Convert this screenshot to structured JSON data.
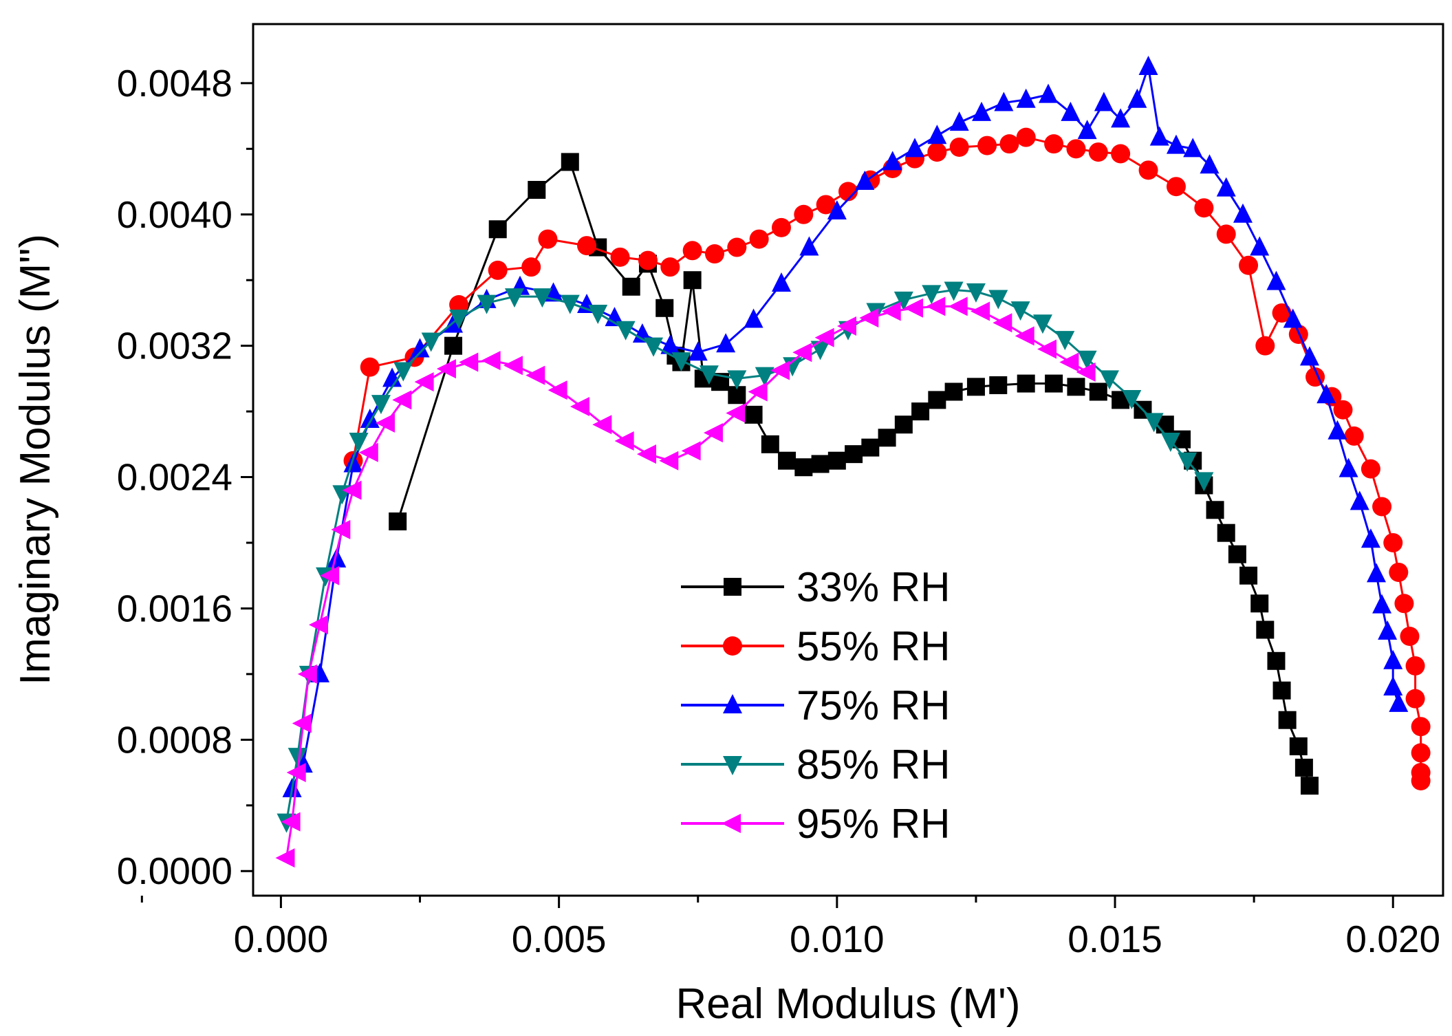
{
  "chart_data": {
    "type": "scatter",
    "title": "",
    "xlabel": "Real Modulus (M')",
    "ylabel": "Imaginary Modulus (M\")",
    "xlim": [
      -0.0005,
      0.0209
    ],
    "ylim": [
      -0.00015,
      0.00516
    ],
    "x_ticks": [
      0.0,
      0.005,
      0.01,
      0.015,
      0.02
    ],
    "x_tick_labels": [
      "0.000",
      "0.005",
      "0.010",
      "0.015",
      "0.020"
    ],
    "y_ticks": [
      0.0,
      0.0008,
      0.0016,
      0.0024,
      0.0032,
      0.004,
      0.0048
    ],
    "y_tick_labels": [
      "0.0000",
      "0.0008",
      "0.0016",
      "0.0024",
      "0.0032",
      "0.0040",
      "0.0048"
    ],
    "grid": false,
    "legend_position": "bottom-center",
    "series": [
      {
        "name": "33% RH",
        "color": "#000000",
        "marker": "square",
        "points": [
          [
            0.0021,
            0.00213
          ],
          [
            0.0031,
            0.0032
          ],
          [
            0.0039,
            0.00391
          ],
          [
            0.0046,
            0.00415
          ],
          [
            0.0052,
            0.00432
          ],
          [
            0.0057,
            0.0038
          ],
          [
            0.0063,
            0.00356
          ],
          [
            0.0066,
            0.0037
          ],
          [
            0.0069,
            0.00343
          ],
          [
            0.0071,
            0.00314
          ],
          [
            0.0072,
            0.0031
          ],
          [
            0.0074,
            0.0036
          ],
          [
            0.0076,
            0.003
          ],
          [
            0.0079,
            0.00298
          ],
          [
            0.0082,
            0.0029
          ],
          [
            0.0085,
            0.00278
          ],
          [
            0.0088,
            0.0026
          ],
          [
            0.0091,
            0.0025
          ],
          [
            0.0094,
            0.00246
          ],
          [
            0.0097,
            0.00248
          ],
          [
            0.01,
            0.0025
          ],
          [
            0.0103,
            0.00254
          ],
          [
            0.0106,
            0.00258
          ],
          [
            0.0109,
            0.00264
          ],
          [
            0.0112,
            0.00272
          ],
          [
            0.0115,
            0.0028
          ],
          [
            0.0118,
            0.00287
          ],
          [
            0.0121,
            0.00292
          ],
          [
            0.0125,
            0.00295
          ],
          [
            0.0129,
            0.00296
          ],
          [
            0.0134,
            0.00297
          ],
          [
            0.0139,
            0.00297
          ],
          [
            0.0143,
            0.00295
          ],
          [
            0.0147,
            0.00292
          ],
          [
            0.0151,
            0.00287
          ],
          [
            0.0155,
            0.00281
          ],
          [
            0.0159,
            0.00272
          ],
          [
            0.0162,
            0.00263
          ],
          [
            0.0164,
            0.0025
          ],
          [
            0.0166,
            0.00235
          ],
          [
            0.0168,
            0.0022
          ],
          [
            0.017,
            0.00206
          ],
          [
            0.0172,
            0.00193
          ],
          [
            0.0174,
            0.0018
          ],
          [
            0.0176,
            0.00163
          ],
          [
            0.0177,
            0.00147
          ],
          [
            0.0179,
            0.00128
          ],
          [
            0.018,
            0.0011
          ],
          [
            0.0181,
            0.00092
          ],
          [
            0.0183,
            0.00076
          ],
          [
            0.0184,
            0.00063
          ],
          [
            0.0185,
            0.00052
          ]
        ]
      },
      {
        "name": "55% RH",
        "color": "#ff0000",
        "marker": "circle",
        "points": [
          [
            0.0013,
            0.0025
          ],
          [
            0.0016,
            0.00307
          ],
          [
            0.0024,
            0.00313
          ],
          [
            0.0032,
            0.00345
          ],
          [
            0.0039,
            0.00366
          ],
          [
            0.0045,
            0.00368
          ],
          [
            0.0048,
            0.00385
          ],
          [
            0.0055,
            0.00381
          ],
          [
            0.0061,
            0.00374
          ],
          [
            0.0066,
            0.00372
          ],
          [
            0.007,
            0.00368
          ],
          [
            0.0074,
            0.00378
          ],
          [
            0.0078,
            0.00376
          ],
          [
            0.0082,
            0.0038
          ],
          [
            0.0086,
            0.00385
          ],
          [
            0.009,
            0.00392
          ],
          [
            0.0094,
            0.004
          ],
          [
            0.0098,
            0.00406
          ],
          [
            0.0102,
            0.00414
          ],
          [
            0.0106,
            0.00421
          ],
          [
            0.011,
            0.00428
          ],
          [
            0.0114,
            0.00434
          ],
          [
            0.0118,
            0.00438
          ],
          [
            0.0122,
            0.00441
          ],
          [
            0.0127,
            0.00442
          ],
          [
            0.0131,
            0.00443
          ],
          [
            0.0134,
            0.00447
          ],
          [
            0.0139,
            0.00443
          ],
          [
            0.0143,
            0.0044
          ],
          [
            0.0147,
            0.00438
          ],
          [
            0.0151,
            0.00437
          ],
          [
            0.0156,
            0.00427
          ],
          [
            0.0161,
            0.00417
          ],
          [
            0.0166,
            0.00404
          ],
          [
            0.017,
            0.00388
          ],
          [
            0.0174,
            0.00369
          ],
          [
            0.0177,
            0.0032
          ],
          [
            0.018,
            0.0034
          ],
          [
            0.0183,
            0.00327
          ],
          [
            0.0186,
            0.00301
          ],
          [
            0.0189,
            0.00289
          ],
          [
            0.0191,
            0.00281
          ],
          [
            0.0193,
            0.00265
          ],
          [
            0.0196,
            0.00245
          ],
          [
            0.0198,
            0.00222
          ],
          [
            0.02,
            0.002
          ],
          [
            0.0201,
            0.00182
          ],
          [
            0.0202,
            0.00163
          ],
          [
            0.0203,
            0.00143
          ],
          [
            0.0204,
            0.00125
          ],
          [
            0.0204,
            0.00105
          ],
          [
            0.0205,
            0.00088
          ],
          [
            0.0205,
            0.00072
          ],
          [
            0.0205,
            0.0006
          ],
          [
            0.0205,
            0.00055
          ]
        ]
      },
      {
        "name": "75% RH",
        "color": "#0000ff",
        "marker": "triangle-up",
        "points": [
          [
            0.0002,
            0.0005
          ],
          [
            0.0004,
            0.00065
          ],
          [
            0.0007,
            0.0012
          ],
          [
            0.001,
            0.0019
          ],
          [
            0.0013,
            0.00248
          ],
          [
            0.0016,
            0.00275
          ],
          [
            0.002,
            0.003
          ],
          [
            0.0025,
            0.00318
          ],
          [
            0.0031,
            0.00333
          ],
          [
            0.0037,
            0.00348
          ],
          [
            0.0043,
            0.00356
          ],
          [
            0.0049,
            0.00352
          ],
          [
            0.0055,
            0.00345
          ],
          [
            0.006,
            0.00337
          ],
          [
            0.0065,
            0.00327
          ],
          [
            0.007,
            0.0032
          ],
          [
            0.0075,
            0.00316
          ],
          [
            0.008,
            0.00321
          ],
          [
            0.0085,
            0.00336
          ],
          [
            0.009,
            0.00358
          ],
          [
            0.0095,
            0.0038
          ],
          [
            0.01,
            0.00402
          ],
          [
            0.0105,
            0.0042
          ],
          [
            0.011,
            0.00432
          ],
          [
            0.0114,
            0.0044
          ],
          [
            0.0118,
            0.00448
          ],
          [
            0.0122,
            0.00456
          ],
          [
            0.0126,
            0.00462
          ],
          [
            0.013,
            0.00468
          ],
          [
            0.0134,
            0.0047
          ],
          [
            0.0138,
            0.00473
          ],
          [
            0.0142,
            0.00462
          ],
          [
            0.0145,
            0.00451
          ],
          [
            0.0148,
            0.00468
          ],
          [
            0.0151,
            0.00458
          ],
          [
            0.0154,
            0.0047
          ],
          [
            0.0156,
            0.0049
          ],
          [
            0.0158,
            0.00447
          ],
          [
            0.0161,
            0.00442
          ],
          [
            0.0164,
            0.0044
          ],
          [
            0.0167,
            0.0043
          ],
          [
            0.017,
            0.00416
          ],
          [
            0.0173,
            0.004
          ],
          [
            0.0176,
            0.0038
          ],
          [
            0.0179,
            0.00359
          ],
          [
            0.0182,
            0.00336
          ],
          [
            0.0185,
            0.00313
          ],
          [
            0.0188,
            0.0029
          ],
          [
            0.019,
            0.00268
          ],
          [
            0.0192,
            0.00245
          ],
          [
            0.0194,
            0.00225
          ],
          [
            0.0196,
            0.00202
          ],
          [
            0.0197,
            0.00181
          ],
          [
            0.0198,
            0.00162
          ],
          [
            0.0199,
            0.00146
          ],
          [
            0.02,
            0.00128
          ],
          [
            0.02,
            0.00112
          ],
          [
            0.0201,
            0.00102
          ]
        ]
      },
      {
        "name": "85% RH",
        "color": "#008080",
        "marker": "triangle-down",
        "points": [
          [
            0.0001,
            0.0003
          ],
          [
            0.0003,
            0.0007
          ],
          [
            0.0005,
            0.0012
          ],
          [
            0.0008,
            0.0018
          ],
          [
            0.0011,
            0.0023
          ],
          [
            0.0014,
            0.00262
          ],
          [
            0.0018,
            0.00285
          ],
          [
            0.0022,
            0.00305
          ],
          [
            0.0027,
            0.00323
          ],
          [
            0.0032,
            0.00337
          ],
          [
            0.0037,
            0.00346
          ],
          [
            0.0042,
            0.0035
          ],
          [
            0.0047,
            0.0035
          ],
          [
            0.0052,
            0.00346
          ],
          [
            0.0057,
            0.0034
          ],
          [
            0.0062,
            0.0033
          ],
          [
            0.0067,
            0.0032
          ],
          [
            0.0072,
            0.00311
          ],
          [
            0.0077,
            0.00303
          ],
          [
            0.0082,
            0.003
          ],
          [
            0.0087,
            0.00302
          ],
          [
            0.0092,
            0.00308
          ],
          [
            0.0097,
            0.00318
          ],
          [
            0.0102,
            0.0033
          ],
          [
            0.0107,
            0.00341
          ],
          [
            0.0112,
            0.00348
          ],
          [
            0.0117,
            0.00352
          ],
          [
            0.0121,
            0.00354
          ],
          [
            0.0125,
            0.00353
          ],
          [
            0.0129,
            0.00349
          ],
          [
            0.0133,
            0.00342
          ],
          [
            0.0137,
            0.00334
          ],
          [
            0.0141,
            0.00324
          ],
          [
            0.0145,
            0.00312
          ],
          [
            0.0149,
            0.003
          ],
          [
            0.0153,
            0.00288
          ],
          [
            0.0157,
            0.00274
          ],
          [
            0.016,
            0.00262
          ],
          [
            0.0163,
            0.0025
          ],
          [
            0.0166,
            0.00238
          ]
        ]
      },
      {
        "name": "95% RH",
        "color": "#ff00ff",
        "marker": "triangle-left",
        "points": [
          [
            0.0001,
            8e-05
          ],
          [
            0.0002,
            0.0003
          ],
          [
            0.0003,
            0.0006
          ],
          [
            0.0004,
            0.0009
          ],
          [
            0.0005,
            0.0012
          ],
          [
            0.0007,
            0.0015
          ],
          [
            0.0009,
            0.0018
          ],
          [
            0.0011,
            0.00208
          ],
          [
            0.0013,
            0.00232
          ],
          [
            0.0016,
            0.00255
          ],
          [
            0.0019,
            0.00273
          ],
          [
            0.0022,
            0.00287
          ],
          [
            0.0026,
            0.00298
          ],
          [
            0.003,
            0.00306
          ],
          [
            0.0034,
            0.0031
          ],
          [
            0.0038,
            0.00311
          ],
          [
            0.0042,
            0.00308
          ],
          [
            0.0046,
            0.00302
          ],
          [
            0.005,
            0.00293
          ],
          [
            0.0054,
            0.00283
          ],
          [
            0.0058,
            0.00272
          ],
          [
            0.0062,
            0.00262
          ],
          [
            0.0066,
            0.00254
          ],
          [
            0.007,
            0.0025
          ],
          [
            0.0074,
            0.00256
          ],
          [
            0.0078,
            0.00267
          ],
          [
            0.0082,
            0.00279
          ],
          [
            0.0086,
            0.00292
          ],
          [
            0.009,
            0.00305
          ],
          [
            0.0094,
            0.00316
          ],
          [
            0.0098,
            0.00325
          ],
          [
            0.0102,
            0.00332
          ],
          [
            0.0106,
            0.00337
          ],
          [
            0.011,
            0.00341
          ],
          [
            0.0114,
            0.00343
          ],
          [
            0.0118,
            0.00344
          ],
          [
            0.0122,
            0.00344
          ],
          [
            0.0126,
            0.00341
          ],
          [
            0.013,
            0.00334
          ],
          [
            0.0134,
            0.00326
          ],
          [
            0.0138,
            0.00318
          ],
          [
            0.0142,
            0.0031
          ],
          [
            0.0145,
            0.00304
          ]
        ]
      }
    ]
  }
}
